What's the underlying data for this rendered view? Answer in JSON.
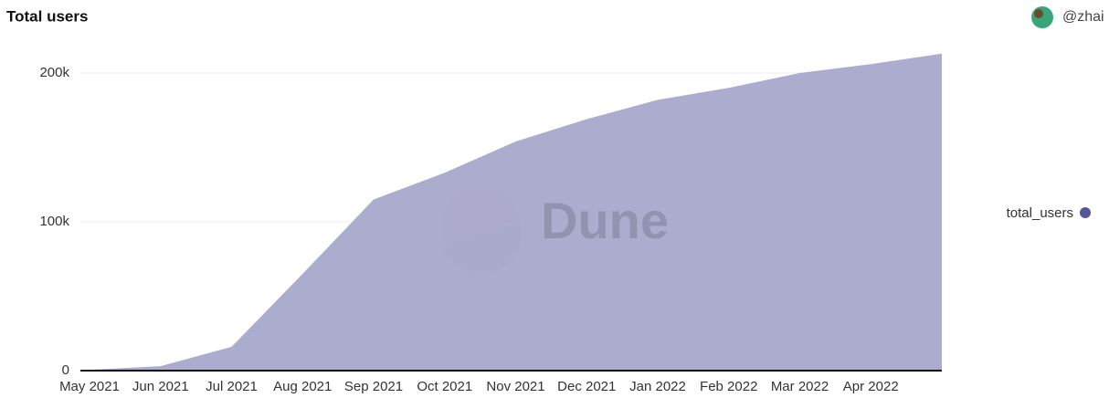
{
  "chart_data": {
    "type": "area",
    "title": "Total users",
    "author": "@zhai",
    "watermark": "Dune",
    "categories": [
      "May 2021",
      "Jun 2021",
      "Jul 2021",
      "Aug 2021",
      "Sep 2021",
      "Oct 2021",
      "Nov 2021",
      "Dec 2021",
      "Jan 2022",
      "Feb 2022",
      "Mar 2022",
      "Apr 2022",
      null
    ],
    "series": [
      {
        "name": "total_users",
        "color": "#a9a9cc",
        "legend_color": "#55579a",
        "values": [
          500,
          3000,
          16000,
          65000,
          115000,
          133000,
          154000,
          169000,
          182000,
          190000,
          200000,
          206000,
          213000
        ]
      }
    ],
    "ylim": [
      0,
      220000
    ],
    "yticks": [
      0,
      {
        "value": 100000,
        "label": "100k"
      },
      {
        "value": 200000,
        "label": "200k"
      }
    ],
    "grid": true,
    "legend": "right"
  }
}
